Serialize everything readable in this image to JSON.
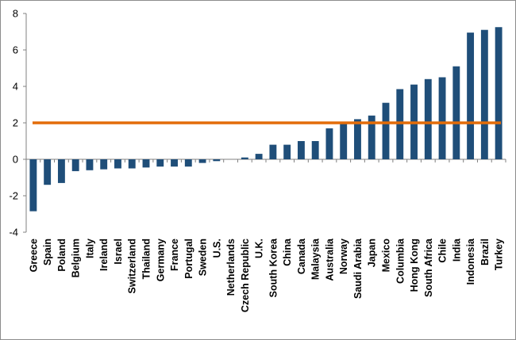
{
  "chart_data": {
    "type": "bar",
    "title": "",
    "xlabel": "",
    "ylabel": "",
    "ylim": [
      -4,
      8
    ],
    "yticks": [
      -4,
      -2,
      0,
      2,
      4,
      6,
      8
    ],
    "grid": false,
    "categories": [
      "Greece",
      "Spain",
      "Poland",
      "Belgium",
      "Italy",
      "Ireland",
      "Israel",
      "Switzerland",
      "Thailand",
      "Germany",
      "France",
      "Portugal",
      "Sweden",
      "U.S.",
      "Netherlands",
      "Czech Republic",
      "U.K.",
      "South Korea",
      "China",
      "Canada",
      "Malaysia",
      "Australia",
      "Norway",
      "Saudi Arabia",
      "Japan",
      "Mexico",
      "Columbia",
      "Hong Kong",
      "South Africa",
      "Chile",
      "India",
      "Indonesia",
      "Brazil",
      "Turkey"
    ],
    "series": [
      {
        "values": [
          -2.85,
          -1.4,
          -1.3,
          -0.65,
          -0.6,
          -0.55,
          -0.5,
          -0.5,
          -0.45,
          -0.4,
          -0.4,
          -0.4,
          -0.2,
          -0.1,
          0.0,
          0.1,
          0.3,
          0.8,
          0.8,
          1.0,
          1.0,
          1.7,
          2.0,
          2.2,
          2.4,
          3.1,
          3.85,
          4.1,
          4.4,
          4.5,
          5.1,
          6.95,
          7.1,
          7.25
        ],
        "color": "#1f4e79"
      }
    ],
    "reference_line": {
      "value": 2,
      "color": "#e36c09"
    }
  }
}
